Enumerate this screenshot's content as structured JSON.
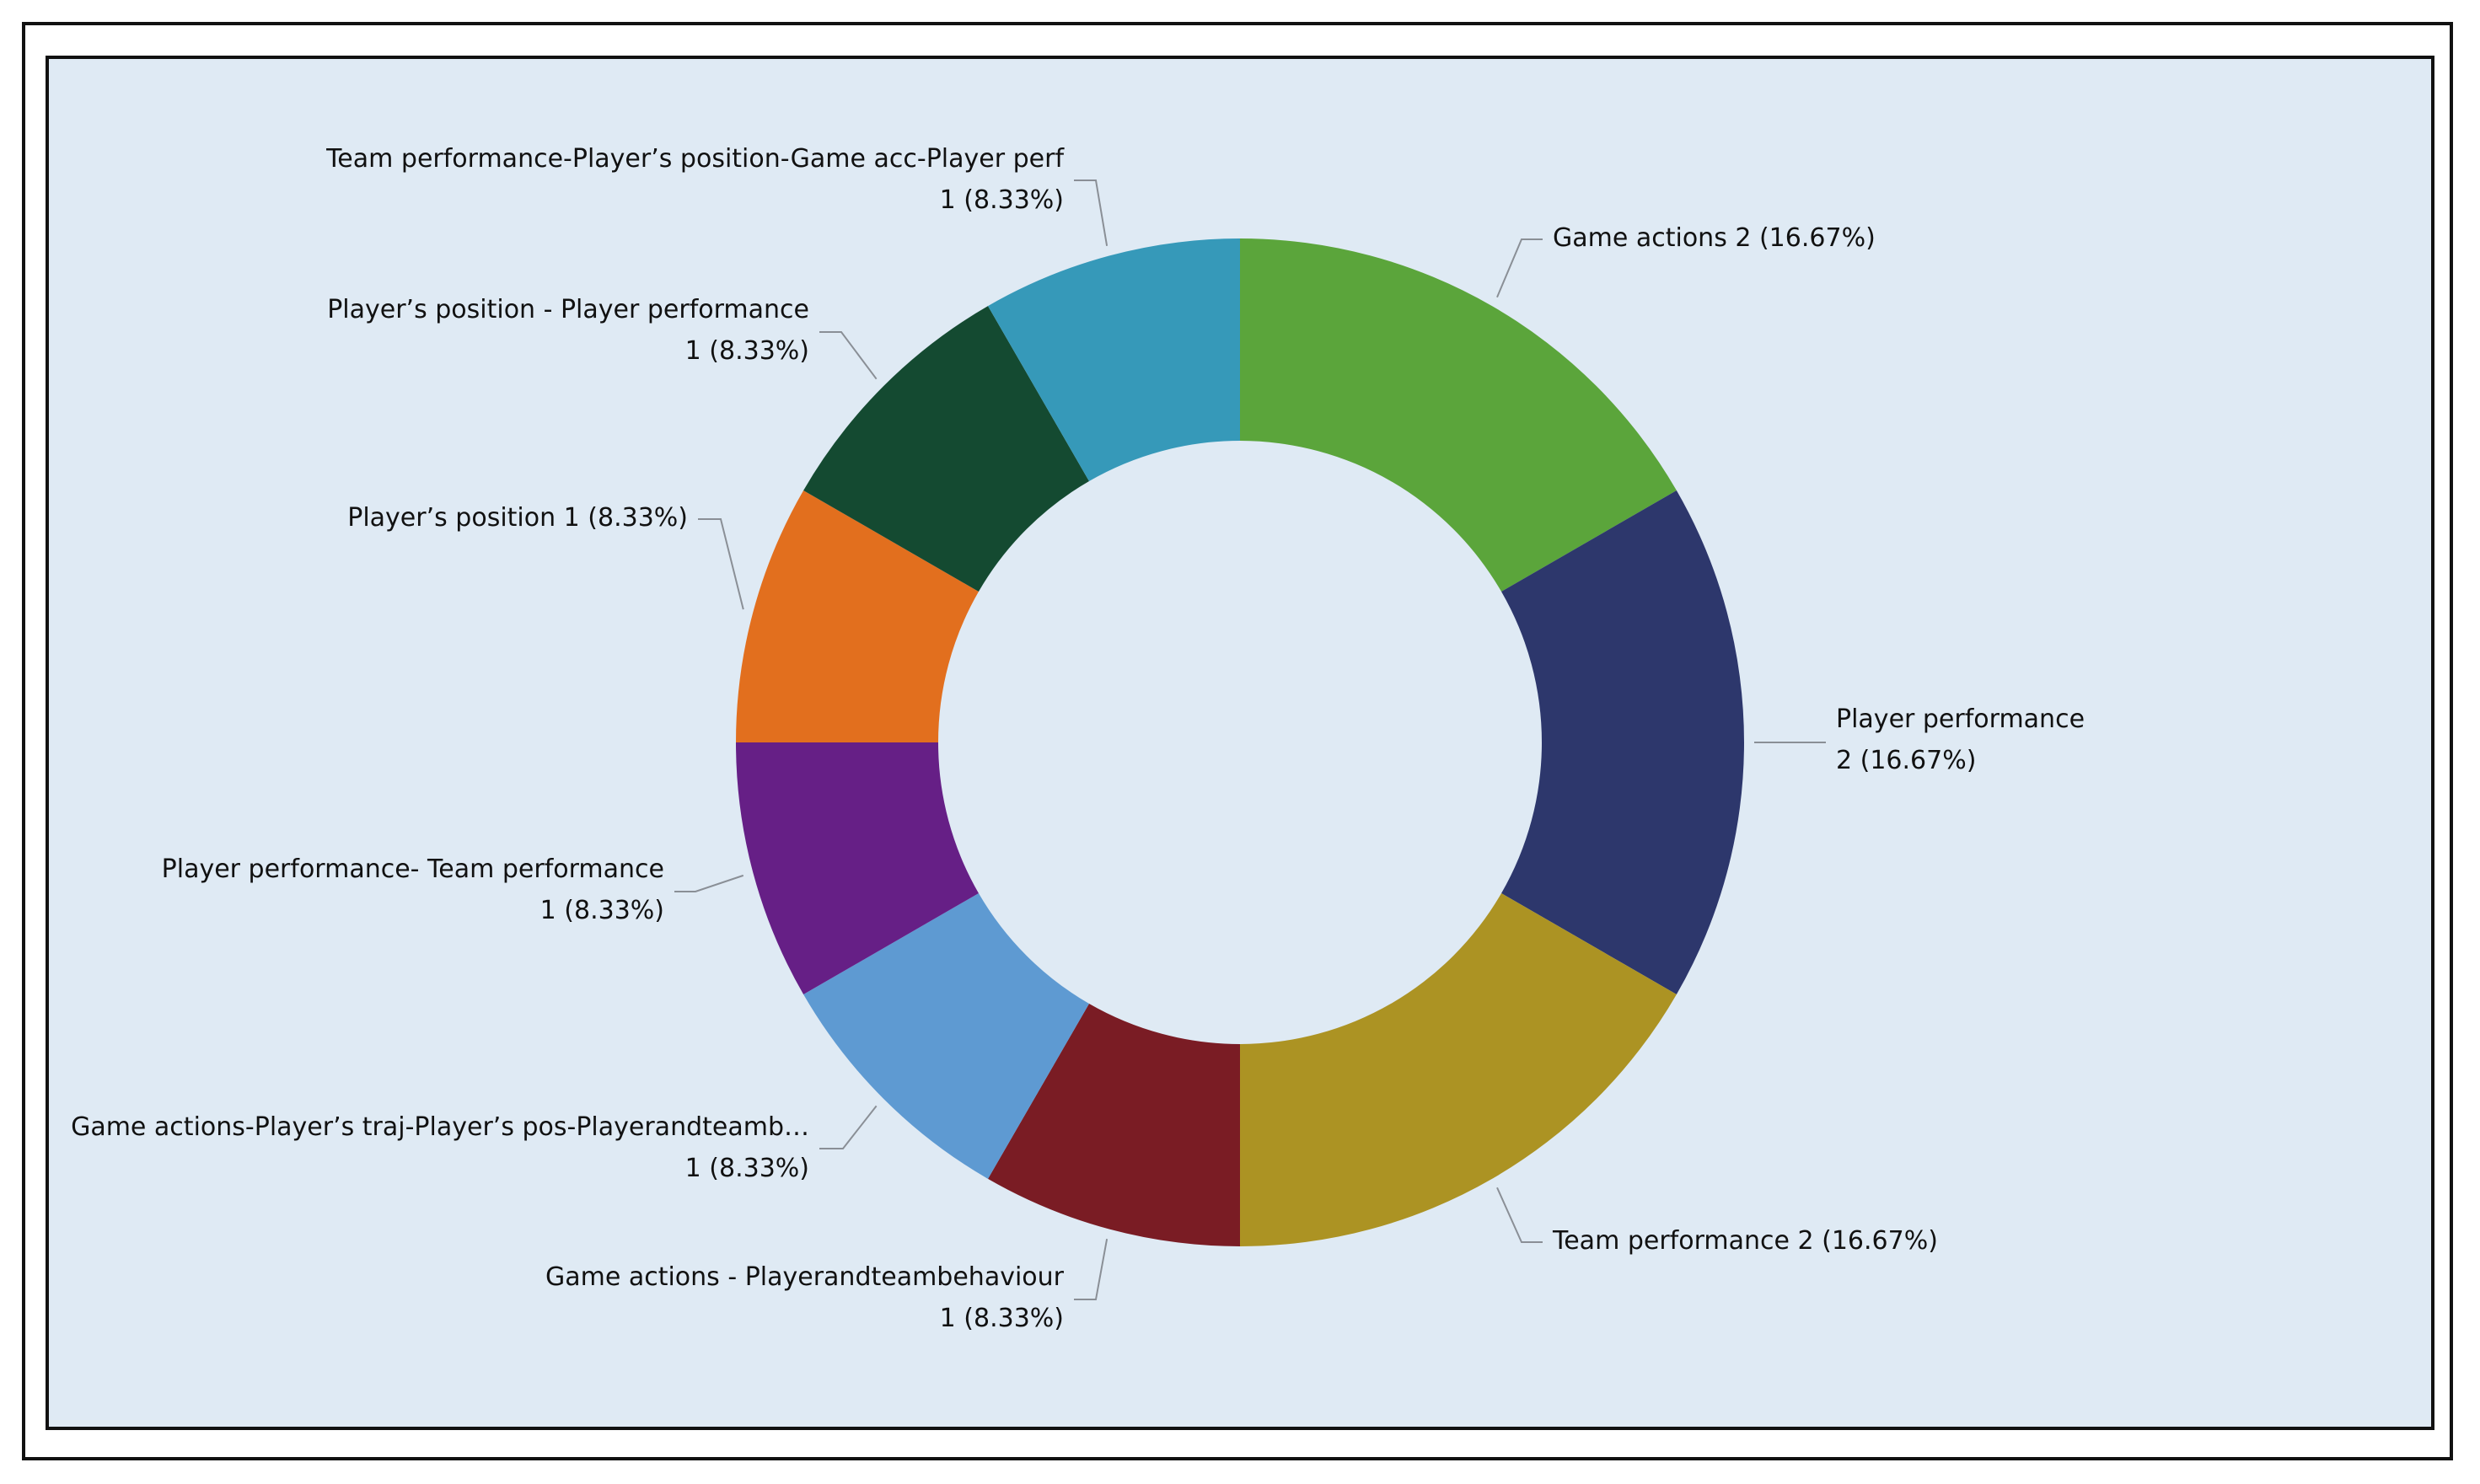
{
  "chart_data": {
    "type": "pie",
    "style": "donut",
    "title": "",
    "start_angle": "top",
    "direction": "clockwise",
    "total": 12,
    "slices": [
      {
        "label": "Game actions",
        "value": 2,
        "percent": "16.67%",
        "color": "#5ba53b",
        "label_lines": [
          "Game actions 2 (16.67%)"
        ]
      },
      {
        "label": "Player performance",
        "value": 2,
        "percent": "16.67%",
        "color": "#2d376c",
        "label_lines": [
          "Player performance",
          "2 (16.67%)"
        ]
      },
      {
        "label": "Team performance",
        "value": 2,
        "percent": "16.67%",
        "color": "#ac9323",
        "label_lines": [
          "Team performance 2 (16.67%)"
        ]
      },
      {
        "label": "Game actions - Playerandteambehaviour",
        "value": 1,
        "percent": "8.33%",
        "color": "#7a1c24",
        "label_lines": [
          "Game actions - Playerandteambehaviour",
          "1 (8.33%)"
        ]
      },
      {
        "label": "Game actions-Player’s traj-Player’s pos-Playerandteamb…",
        "value": 1,
        "percent": "8.33%",
        "color": "#5e9ad2",
        "label_lines": [
          "Game actions-Player’s traj-Player’s pos-Playerandteamb…",
          "1 (8.33%)"
        ]
      },
      {
        "label": "Player performance- Team performance",
        "value": 1,
        "percent": "8.33%",
        "color": "#661f86",
        "label_lines": [
          "Player performance- Team performance",
          "1 (8.33%)"
        ]
      },
      {
        "label": "Player’s position",
        "value": 1,
        "percent": "8.33%",
        "color": "#e26f1e",
        "label_lines": [
          "Player’s position 1 (8.33%)"
        ]
      },
      {
        "label": "Player’s position - Player performance",
        "value": 1,
        "percent": "8.33%",
        "color": "#144a31",
        "label_lines": [
          "Player’s position - Player performance",
          "1 (8.33%)"
        ]
      },
      {
        "label": "Team performance-Player’s position-Game acc-Player perf",
        "value": 1,
        "percent": "8.33%",
        "color": "#3699b9",
        "label_lines": [
          "Team performance-Player’s position-Game acc-Player perf",
          "1 (8.33%)"
        ]
      }
    ]
  }
}
